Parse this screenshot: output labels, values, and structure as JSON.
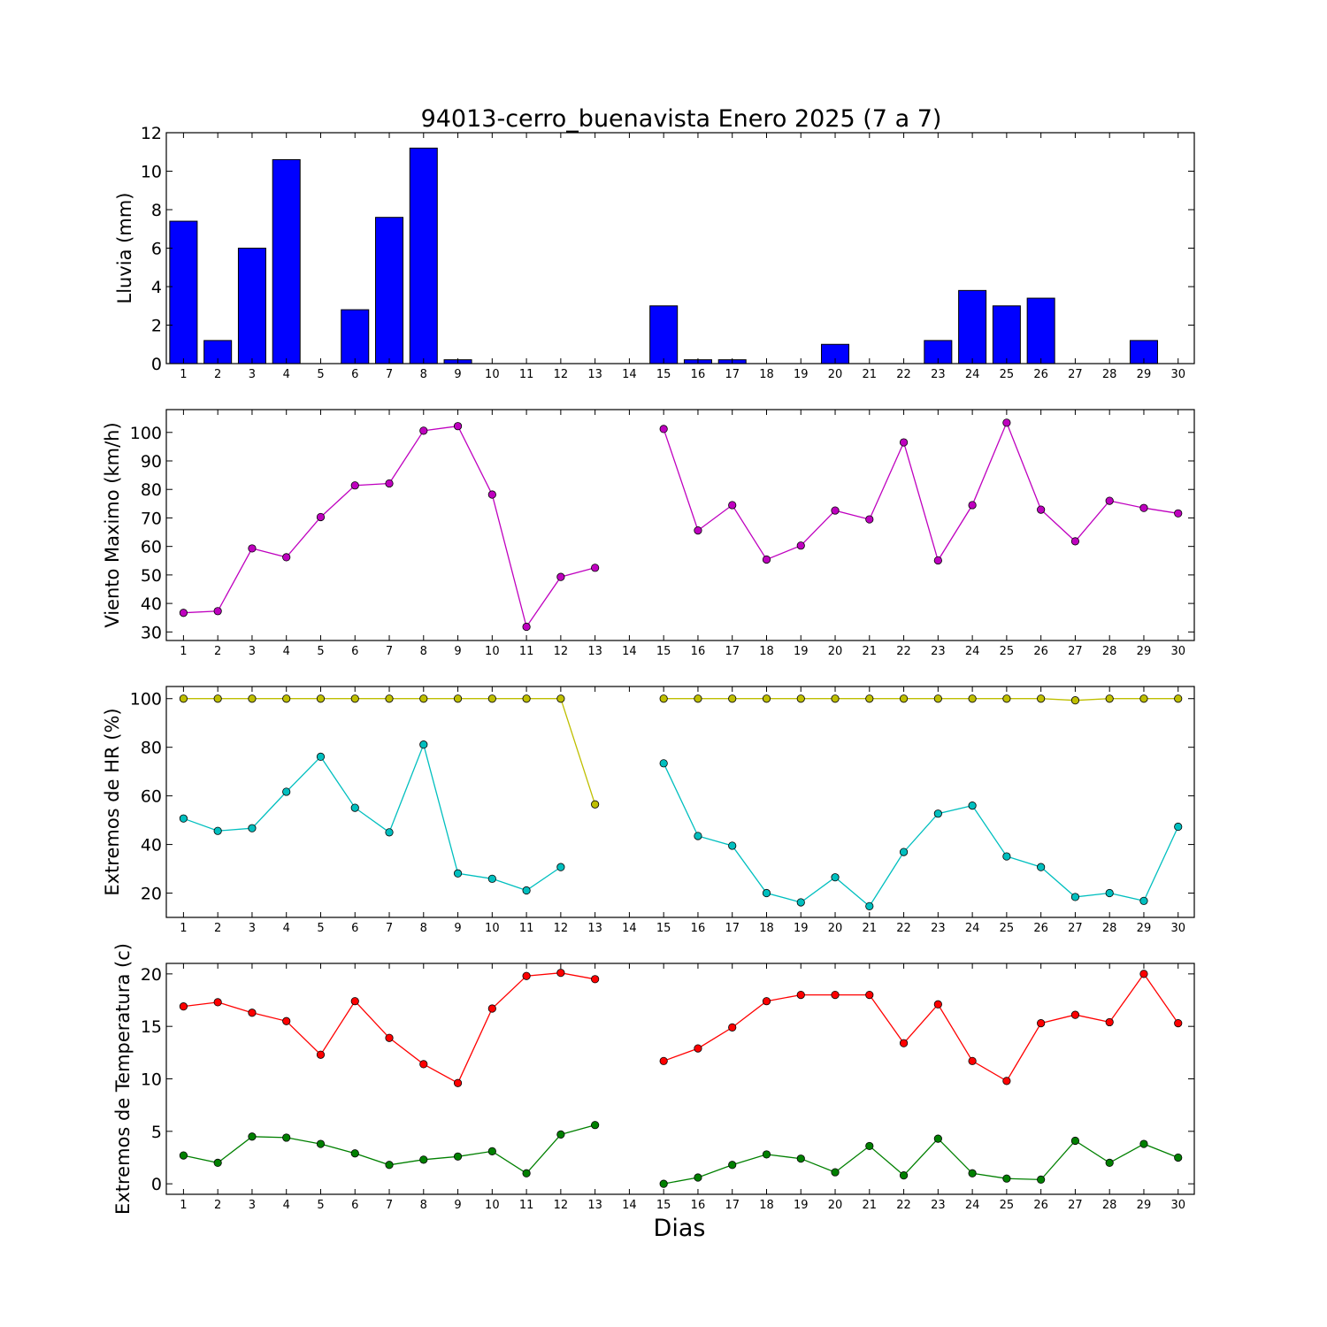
{
  "title": "94013-cerro_buenavista Enero 2025  (7 a 7)",
  "xlabel": "Dias",
  "days": [
    1,
    2,
    3,
    4,
    5,
    6,
    7,
    8,
    9,
    10,
    11,
    12,
    13,
    14,
    15,
    16,
    17,
    18,
    19,
    20,
    21,
    22,
    23,
    24,
    25,
    26,
    27,
    28,
    29,
    30
  ],
  "chart_data": [
    {
      "type": "bar",
      "ylabel": "Lluvia (mm)",
      "ylim": [
        0,
        12
      ],
      "yticks": [
        0,
        2,
        4,
        6,
        8,
        10,
        12
      ],
      "categories": [
        1,
        2,
        3,
        4,
        5,
        6,
        7,
        8,
        9,
        10,
        11,
        12,
        13,
        14,
        15,
        16,
        17,
        18,
        19,
        20,
        21,
        22,
        23,
        24,
        25,
        26,
        27,
        28,
        29,
        30
      ],
      "series": [
        {
          "color": "#0000ff",
          "values": [
            7.4,
            1.2,
            6.0,
            10.6,
            0.0,
            2.8,
            7.6,
            11.2,
            0.2,
            0.0,
            0.0,
            0.0,
            0.0,
            0.0,
            3.0,
            0.2,
            0.2,
            0.0,
            0.0,
            1.0,
            0.0,
            0.0,
            1.2,
            3.8,
            3.0,
            3.4,
            0.0,
            0.0,
            1.2,
            0.0
          ]
        }
      ]
    },
    {
      "type": "line",
      "ylabel": "Viento Maximo (km/h)",
      "ylim": [
        27,
        108
      ],
      "yticks": [
        30,
        40,
        50,
        60,
        70,
        80,
        90,
        100
      ],
      "x": [
        1,
        2,
        3,
        4,
        5,
        6,
        7,
        8,
        9,
        10,
        11,
        12,
        13,
        14,
        15,
        16,
        17,
        18,
        19,
        20,
        21,
        22,
        23,
        24,
        25,
        26,
        27,
        28,
        29,
        30
      ],
      "series": [
        {
          "color": "#bf00bf",
          "values": [
            36.7,
            37.3,
            59.3,
            56.2,
            70.3,
            81.4,
            82.1,
            100.6,
            102.2,
            78.2,
            31.8,
            49.3,
            52.5,
            null,
            101.2,
            65.6,
            74.5,
            55.4,
            60.3,
            72.6,
            69.5,
            96.5,
            55.1,
            74.5,
            103.4,
            72.9,
            61.8,
            76.0,
            73.5,
            71.6
          ]
        }
      ]
    },
    {
      "type": "line",
      "ylabel": "Extremos de HR (%)",
      "ylim": [
        10,
        105
      ],
      "yticks": [
        20,
        40,
        60,
        80,
        100
      ],
      "x": [
        1,
        2,
        3,
        4,
        5,
        6,
        7,
        8,
        9,
        10,
        11,
        12,
        13,
        14,
        15,
        16,
        17,
        18,
        19,
        20,
        21,
        22,
        23,
        24,
        25,
        26,
        27,
        28,
        29,
        30
      ],
      "series": [
        {
          "color": "#bfbf00",
          "values": [
            100,
            100,
            100,
            100,
            100,
            100,
            100,
            100,
            100,
            100,
            100,
            100,
            56.5,
            null,
            100,
            100,
            100,
            100,
            100,
            100,
            100,
            100,
            100,
            100,
            100,
            100,
            99.3,
            100,
            100,
            100
          ]
        },
        {
          "color": "#00bfbf",
          "values": [
            50.7,
            45.6,
            46.7,
            61.7,
            76.1,
            55.1,
            45.0,
            81.1,
            28.1,
            25.9,
            21.1,
            30.7,
            null,
            null,
            73.4,
            43.5,
            39.5,
            20.0,
            16.2,
            26.5,
            14.6,
            36.9,
            52.7,
            56.0,
            35.1,
            30.7,
            18.4,
            20.0,
            16.8,
            47.3
          ]
        }
      ]
    },
    {
      "type": "line",
      "ylabel": "Extremos de Temperatura (c)",
      "ylim": [
        -1,
        21
      ],
      "yticks": [
        0,
        5,
        10,
        15,
        20
      ],
      "x": [
        1,
        2,
        3,
        4,
        5,
        6,
        7,
        8,
        9,
        10,
        11,
        12,
        13,
        14,
        15,
        16,
        17,
        18,
        19,
        20,
        21,
        22,
        23,
        24,
        25,
        26,
        27,
        28,
        29,
        30
      ],
      "series": [
        {
          "color": "#ff0000",
          "values": [
            16.9,
            17.3,
            16.3,
            15.5,
            12.3,
            17.4,
            13.9,
            11.4,
            9.6,
            16.7,
            19.8,
            20.1,
            19.5,
            null,
            11.7,
            12.9,
            14.9,
            17.4,
            18.0,
            18.0,
            18.0,
            13.4,
            17.1,
            11.7,
            9.8,
            15.3,
            16.1,
            15.4,
            20.0,
            15.3
          ]
        },
        {
          "color": "#008000",
          "values": [
            2.7,
            2.0,
            4.5,
            4.4,
            3.8,
            2.9,
            1.8,
            2.3,
            2.6,
            3.1,
            1.0,
            4.7,
            5.6,
            null,
            0.0,
            0.6,
            1.8,
            2.8,
            2.4,
            1.1,
            3.6,
            0.8,
            4.3,
            1.0,
            0.5,
            0.4,
            4.1,
            2.0,
            3.8,
            2.5
          ]
        }
      ]
    }
  ]
}
